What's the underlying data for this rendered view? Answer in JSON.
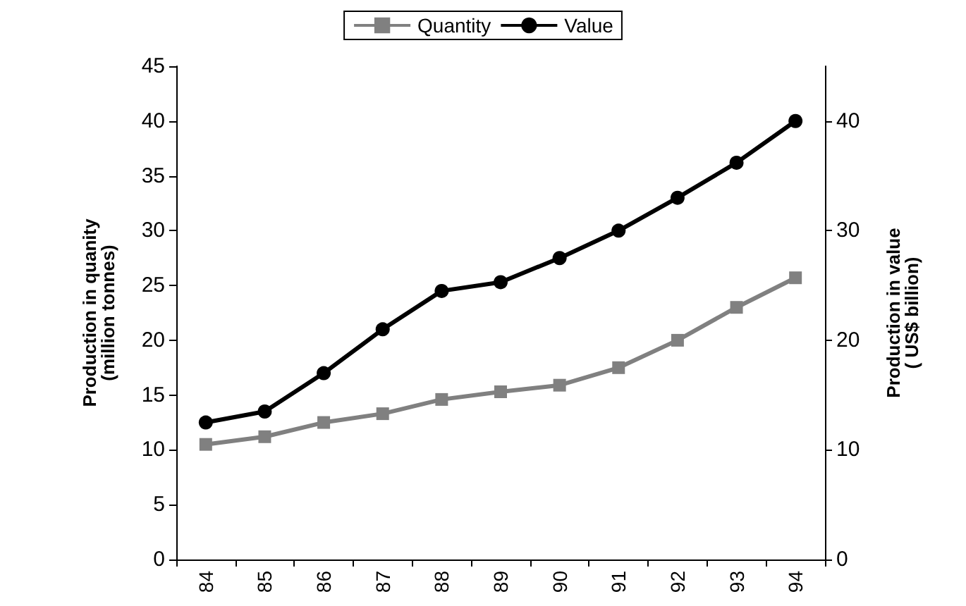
{
  "chart_data": {
    "type": "line",
    "ylabel": "Production in quanity\n(million tonnes)",
    "y2label": "Production in value\n( US$ billion)",
    "categories": [
      "84",
      "85",
      "86",
      "87",
      "88",
      "89",
      "90",
      "91",
      "92",
      "93",
      "94"
    ],
    "series": [
      {
        "name": "Quantity",
        "color": "#808080",
        "marker": "square",
        "values": [
          10.5,
          11.2,
          12.5,
          13.3,
          14.6,
          15.3,
          15.9,
          17.5,
          20,
          23,
          25.7
        ]
      },
      {
        "name": "Value",
        "color": "#000000",
        "marker": "circle",
        "axis": "y2",
        "values": [
          12.5,
          13.5,
          17,
          21,
          24.5,
          25.3,
          27.5,
          30,
          33,
          36.2,
          40
        ]
      }
    ],
    "ylim": [
      0,
      45
    ],
    "yticks": [
      0,
      5,
      10,
      15,
      20,
      25,
      30,
      35,
      40,
      45
    ],
    "y2lim": [
      0,
      45
    ],
    "y2ticks": [
      0,
      10,
      20,
      30,
      40
    ],
    "grid": false,
    "legend": "top"
  }
}
